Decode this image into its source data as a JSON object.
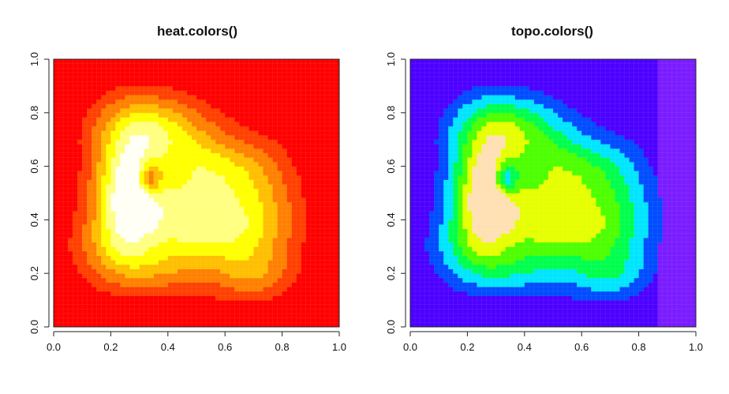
{
  "chart_data": [
    {
      "type": "heatmap",
      "title": "heat.colors()",
      "palette": "heat",
      "colors": [
        "#FF0000",
        "#FF4000",
        "#FF8000",
        "#FFBF00",
        "#FFFF00",
        "#FFFF80",
        "#FFFFF5"
      ],
      "xlim": [
        0,
        1
      ],
      "ylim": [
        0,
        1
      ],
      "xticks": [
        "0.0",
        "0.2",
        "0.4",
        "0.6",
        "0.8",
        "1.0"
      ],
      "yticks": [
        "0.0",
        "0.2",
        "0.4",
        "0.6",
        "0.8",
        "1.0"
      ],
      "grid_size": 60
    },
    {
      "type": "heatmap",
      "title": "topo.colors()",
      "palette": "topo",
      "colors": [
        "#4C00FF",
        "#004CFF",
        "#00E5FF",
        "#00FF4D",
        "#4DFF00",
        "#E6FF00",
        "#FFE0B3"
      ],
      "edge_color": "#7A1CFF",
      "xlim": [
        0,
        1
      ],
      "ylim": [
        0,
        1
      ],
      "xticks": [
        "0.0",
        "0.2",
        "0.4",
        "0.6",
        "0.8",
        "1.0"
      ],
      "yticks": [
        "0.0",
        "0.2",
        "0.4",
        "0.6",
        "0.8",
        "1.0"
      ],
      "grid_size": 60
    }
  ]
}
